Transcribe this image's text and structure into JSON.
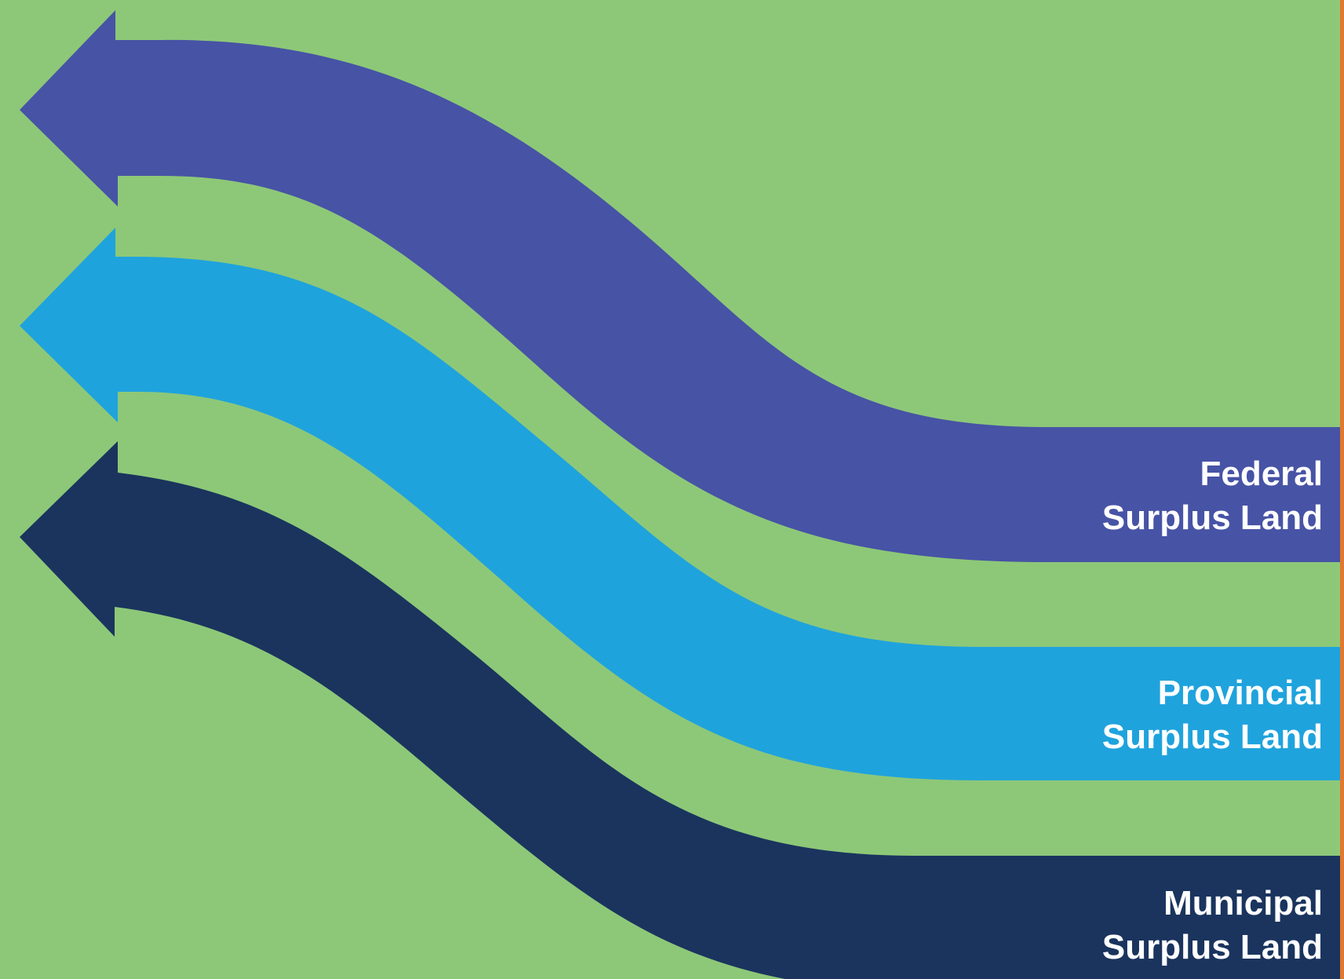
{
  "colors": {
    "background": "#8dc878",
    "federal": "#4753a5",
    "provincial": "#1fa3dd",
    "municipal": "#1a345e",
    "edge_line": "#e0792f",
    "label_text": "#ffffff"
  },
  "arrows": [
    {
      "id": "federal",
      "label_line1": "Federal",
      "label_line2": "Surplus Land",
      "direction": "left"
    },
    {
      "id": "provincial",
      "label_line1": "Provincial",
      "label_line2": "Surplus Land",
      "direction": "left"
    },
    {
      "id": "municipal",
      "label_line1": "Municipal",
      "label_line2": "Surplus Land",
      "direction": "left"
    }
  ]
}
